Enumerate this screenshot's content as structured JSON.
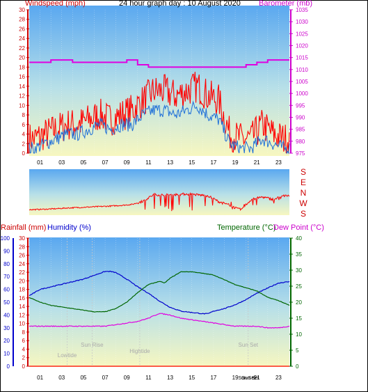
{
  "chart_data": [
    {
      "type": "line",
      "title": "24 hour graph day : 10 August 2020",
      "left_label": "Windspeed (mph)",
      "right_label": "Barometer (mb)",
      "x_ticks": [
        "01",
        "03",
        "05",
        "07",
        "09",
        "11",
        "13",
        "15",
        "17",
        "19",
        "21",
        "23"
      ],
      "y_left_ticks": [
        "0",
        "2",
        "4",
        "6",
        "8",
        "10",
        "12",
        "14",
        "16",
        "18",
        "20",
        "22",
        "24",
        "26",
        "28",
        "30"
      ],
      "y_left_range": [
        0,
        30
      ],
      "y_right_ticks": [
        "975",
        "980",
        "985",
        "990",
        "995",
        "1000",
        "1005",
        "1010",
        "1015",
        "1020",
        "1025",
        "1030",
        "1035"
      ],
      "y_right_range": [
        975,
        1035
      ],
      "colors": {
        "gust": "#ff0000",
        "average": "#1e6fd8",
        "barometer": "#e000e0"
      },
      "series": [
        {
          "name": "Windspeed (mph)",
          "values": [
            3,
            4,
            5,
            6,
            6,
            7,
            8,
            7,
            8,
            9,
            11,
            13,
            13,
            12,
            13,
            14,
            12,
            11,
            4,
            3,
            3,
            6,
            4,
            3
          ]
        },
        {
          "name": "",
          "values": [
            1,
            2,
            3,
            4,
            4,
            5,
            6,
            5,
            6,
            6,
            8,
            9,
            9,
            8,
            9,
            10,
            8,
            7,
            2,
            1,
            1,
            3,
            2,
            1
          ]
        },
        {
          "name": "Barometer (mb)",
          "values": [
            1013,
            1013,
            1014,
            1014,
            1013,
            1013,
            1013,
            1013,
            1013,
            1014,
            1012,
            1011,
            1011,
            1011,
            1011,
            1011,
            1011,
            1011,
            1011,
            1011,
            1012,
            1013,
            1014,
            1014
          ]
        }
      ]
    },
    {
      "type": "line",
      "direction_labels": [
        "S",
        "E",
        "N",
        "W",
        "S"
      ],
      "colors": {
        "direction": "#ff0000"
      },
      "series": [
        {
          "name": "",
          "values": [
            215,
            218,
            222,
            228,
            232,
            236,
            240,
            244,
            250,
            258,
            285,
            340,
            335,
            340,
            345,
            338,
            330,
            280,
            250,
            210,
            300,
            320,
            300,
            330
          ]
        }
      ]
    },
    {
      "type": "line",
      "left_labels": [
        "Rainfall (mm)",
        "Humidity (%)"
      ],
      "right_labels": [
        "Temperature (°C)",
        "Dew Point (°C)"
      ],
      "x_ticks": [
        "01",
        "03",
        "05",
        "07",
        "09",
        "11",
        "13",
        "15",
        "17",
        "19",
        "21",
        "23"
      ],
      "extra_x_labels": [
        "Sun Set",
        "Sun Set"
      ],
      "y_humidity_ticks": [
        "0",
        "10",
        "20",
        "30",
        "40",
        "50",
        "60",
        "70",
        "80",
        "90",
        "100"
      ],
      "y_humidity_range": [
        0,
        100
      ],
      "y_rain_ticks": [
        "0",
        "2",
        "4",
        "6",
        "8",
        "10",
        "12",
        "14",
        "16",
        "18",
        "20",
        "22",
        "24",
        "26",
        "28",
        "30"
      ],
      "y_rain_range": [
        0,
        30
      ],
      "y_temp_ticks": [
        "0",
        "5",
        "10",
        "15",
        "20",
        "25",
        "30",
        "35",
        "40"
      ],
      "y_temp_range": [
        0,
        40
      ],
      "annotations": [
        {
          "text": "Lowtide",
          "hour": 3.5
        },
        {
          "text": "Sun Rise",
          "hour": 5.8
        },
        {
          "text": "Hightide",
          "hour": 10.2
        },
        {
          "text": "Sun Set",
          "hour": 20.2
        }
      ],
      "colors": {
        "humidity": "#0000cc",
        "rain": "#ff0000",
        "temperature": "#006600",
        "dewpoint": "#e000e0"
      },
      "series": [
        {
          "name": "Humidity (%)",
          "hours": [
            0,
            1,
            2,
            3,
            4,
            5,
            6,
            7,
            7.5,
            8,
            9,
            10,
            11,
            12,
            13,
            14,
            15,
            16,
            16.5,
            17,
            18,
            19,
            20,
            21,
            22,
            23,
            24
          ],
          "values": [
            55,
            60,
            62,
            64,
            66,
            68,
            71,
            74,
            74,
            73,
            68,
            62,
            57,
            51,
            46,
            43,
            42,
            41,
            41,
            43,
            45,
            48,
            52,
            57,
            61,
            65,
            66
          ]
        },
        {
          "name": "Temperature (°C)",
          "hours": [
            0,
            1,
            2,
            3,
            4,
            5,
            6,
            7,
            8,
            9,
            10,
            11,
            12,
            12.5,
            13,
            14,
            15,
            16,
            17,
            18,
            19,
            20,
            21,
            22,
            23,
            24
          ],
          "values": [
            21.5,
            20,
            19,
            18.5,
            18,
            17.5,
            17,
            17,
            18,
            20,
            23,
            25.5,
            26.5,
            26,
            27.5,
            29.5,
            29.5,
            29,
            28.5,
            27,
            25.5,
            24.5,
            23.5,
            21.5,
            20.5,
            19
          ]
        },
        {
          "name": "Dew Point (°C)",
          "hours": [
            0,
            1,
            2,
            3,
            4,
            5,
            6,
            7,
            8,
            9,
            10,
            11,
            12,
            13,
            14,
            15,
            16,
            17,
            18,
            19,
            20,
            21,
            22,
            23,
            24
          ],
          "values": [
            12.5,
            12.5,
            12.5,
            12.5,
            12.5,
            12.5,
            12.5,
            12.5,
            13,
            13.5,
            14,
            15,
            16.5,
            16,
            15,
            14.5,
            14,
            13.5,
            13,
            12.5,
            12.5,
            12.5,
            12,
            12,
            12.5
          ]
        },
        {
          "name": "Rainfall (mm)",
          "hours": [
            0,
            24
          ],
          "values": [
            0,
            0
          ]
        }
      ]
    }
  ]
}
